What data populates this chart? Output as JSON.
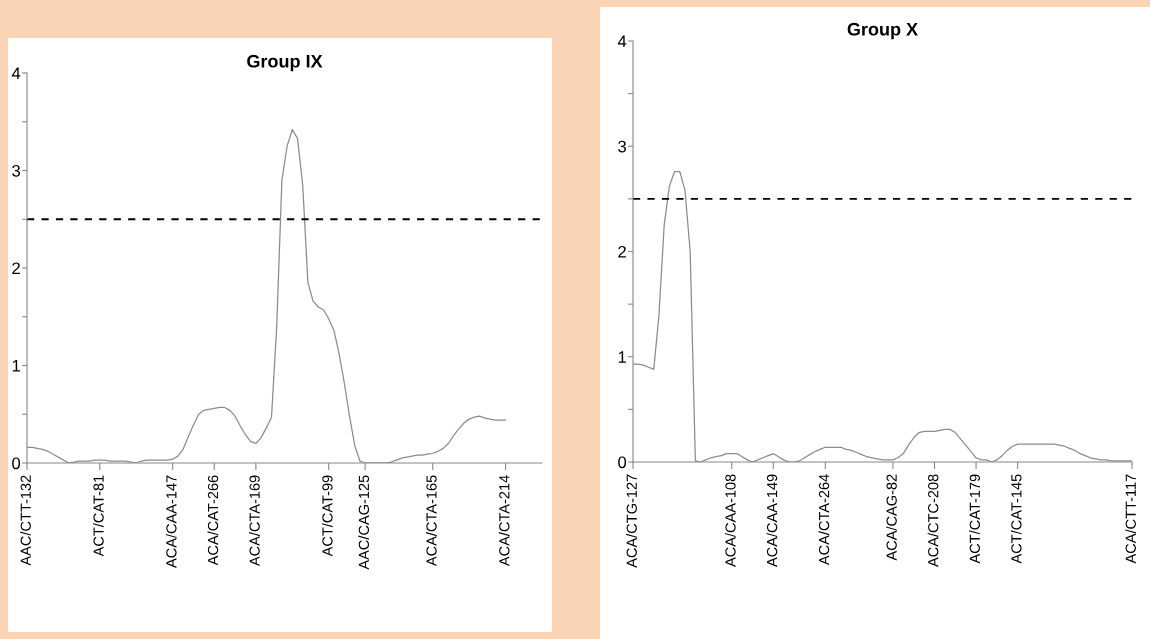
{
  "chart_data": [
    {
      "type": "line",
      "title": "Group IX",
      "categories": [
        "AAC/CTT-132",
        null,
        null,
        null,
        null,
        null,
        null,
        null,
        null,
        null,
        null,
        null,
        null,
        null,
        "ACT/CAT-81",
        null,
        null,
        null,
        null,
        null,
        null,
        null,
        null,
        null,
        null,
        null,
        null,
        null,
        "ACA/CAA-147",
        null,
        null,
        null,
        null,
        null,
        null,
        null,
        "ACA/CAT-266",
        null,
        null,
        null,
        null,
        null,
        null,
        null,
        "ACA/CTA-169",
        null,
        null,
        null,
        null,
        null,
        null,
        null,
        null,
        null,
        null,
        null,
        null,
        null,
        "ACT/CAT-99",
        null,
        null,
        null,
        null,
        null,
        null,
        "AAC/CAG-125",
        null,
        null,
        null,
        null,
        null,
        null,
        null,
        null,
        null,
        null,
        null,
        null,
        "ACA/CTA-165",
        null,
        null,
        null,
        null,
        null,
        null,
        null,
        null,
        null,
        null,
        null,
        null,
        null,
        "ACA/CTA-214",
        null,
        null,
        null,
        null,
        null,
        null,
        null
      ],
      "series": [
        {
          "color": "#8c8c8c",
          "values": [
            0.16,
            0.16,
            0.15,
            0.14,
            0.12,
            0.09,
            0.06,
            0.03,
            0,
            0.01,
            0.02,
            0.02,
            0.02,
            0.03,
            0.03,
            0.03,
            0.02,
            0.02,
            0.02,
            0.02,
            0.01,
            0,
            0.02,
            0.03,
            0.03,
            0.03,
            0.03,
            0.03,
            0.04,
            0.07,
            0.14,
            0.27,
            0.39,
            0.5,
            0.54,
            0.55,
            0.56,
            0.57,
            0.57,
            0.54,
            0.48,
            0.38,
            0.29,
            0.22,
            0.2,
            0.26,
            0.36,
            0.47,
            1.4,
            2.9,
            3.25,
            3.42,
            3.33,
            2.85,
            1.85,
            1.66,
            1.6,
            1.57,
            1.48,
            1.36,
            1.12,
            0.82,
            0.48,
            0.18,
            0.02,
            0,
            0,
            0,
            0,
            0,
            0.01,
            0.03,
            0.05,
            0.06,
            0.07,
            0.08,
            0.08,
            0.09,
            0.1,
            0.12,
            0.15,
            0.2,
            0.28,
            0.35,
            0.41,
            0.45,
            0.47,
            0.48,
            0.46,
            0.45,
            0.44,
            0.44,
            0.44,
            null,
            null,
            null,
            null,
            null,
            null,
            null
          ]
        }
      ],
      "ylim": [
        0,
        4
      ],
      "yticks": [
        0,
        {
          "value": 0.5,
          "label": null
        },
        1,
        {
          "value": 1.5,
          "label": null
        },
        2,
        {
          "value": 2.5,
          "label": null
        },
        3,
        {
          "value": 3.5,
          "label": null
        },
        4
      ],
      "ref_lines": [
        {
          "axis": "y",
          "value": 2.5,
          "color": "#000000",
          "line_style": "dashed"
        }
      ],
      "grid": false,
      "legend": false
    },
    {
      "type": "line",
      "title": "Group X",
      "categories": [
        "ACA/CTG-127",
        null,
        null,
        null,
        null,
        null,
        null,
        null,
        null,
        null,
        null,
        null,
        null,
        null,
        null,
        null,
        null,
        null,
        null,
        "ACA/CAA-108",
        null,
        null,
        null,
        null,
        null,
        null,
        null,
        "ACA/CAA-149",
        null,
        null,
        null,
        null,
        null,
        null,
        null,
        null,
        null,
        "ACA/CTA-264",
        null,
        null,
        null,
        null,
        null,
        null,
        null,
        null,
        null,
        null,
        null,
        null,
        "ACA/CAG-82",
        null,
        null,
        null,
        null,
        null,
        null,
        null,
        "ACA/CTC-208",
        null,
        null,
        null,
        null,
        null,
        null,
        null,
        "ACT/CAT-179",
        null,
        null,
        null,
        null,
        null,
        null,
        null,
        "ACT/CAT-145",
        null,
        null,
        null,
        null,
        null,
        null,
        null,
        null,
        null,
        null,
        null,
        null,
        null,
        null,
        null,
        null,
        null,
        null,
        null,
        null,
        null,
        "ACA/CTT-117"
      ],
      "series": [
        {
          "color": "#8c8c8c",
          "values": [
            0.93,
            0.93,
            0.92,
            0.9,
            0.88,
            1.4,
            2.25,
            2.62,
            2.76,
            2.76,
            2.58,
            2.0,
            0.01,
            0,
            0.02,
            0.04,
            0.05,
            0.06,
            0.08,
            0.08,
            0.08,
            0.05,
            0.02,
            0,
            0.02,
            0.04,
            0.06,
            0.08,
            0.05,
            0.02,
            0,
            0,
            0.01,
            0.04,
            0.07,
            0.1,
            0.12,
            0.14,
            0.14,
            0.14,
            0.14,
            0.12,
            0.11,
            0.09,
            0.07,
            0.05,
            0.04,
            0.03,
            0.02,
            0.02,
            0.02,
            0.04,
            0.08,
            0.16,
            0.23,
            0.28,
            0.29,
            0.29,
            0.29,
            0.3,
            0.31,
            0.31,
            0.28,
            0.22,
            0.16,
            0.1,
            0.04,
            0.02,
            0.02,
            0,
            0.02,
            0.06,
            0.11,
            0.15,
            0.17,
            0.17,
            0.17,
            0.17,
            0.17,
            0.17,
            0.17,
            0.17,
            0.16,
            0.15,
            0.13,
            0.11,
            0.08,
            0.06,
            0.04,
            0.03,
            0.02,
            0.02,
            0.01,
            0.01,
            0.01,
            0.01,
            0.01
          ]
        }
      ],
      "ylim": [
        0,
        4
      ],
      "yticks": [
        0,
        {
          "value": 0.5,
          "label": null
        },
        1,
        {
          "value": 1.5,
          "label": null
        },
        2,
        {
          "value": 2.5,
          "label": null
        },
        3,
        {
          "value": 3.5,
          "label": null
        },
        4
      ],
      "ref_lines": [
        {
          "axis": "y",
          "value": 2.5,
          "color": "#000000",
          "line_style": "dashed"
        }
      ],
      "grid": false,
      "legend": false
    }
  ]
}
